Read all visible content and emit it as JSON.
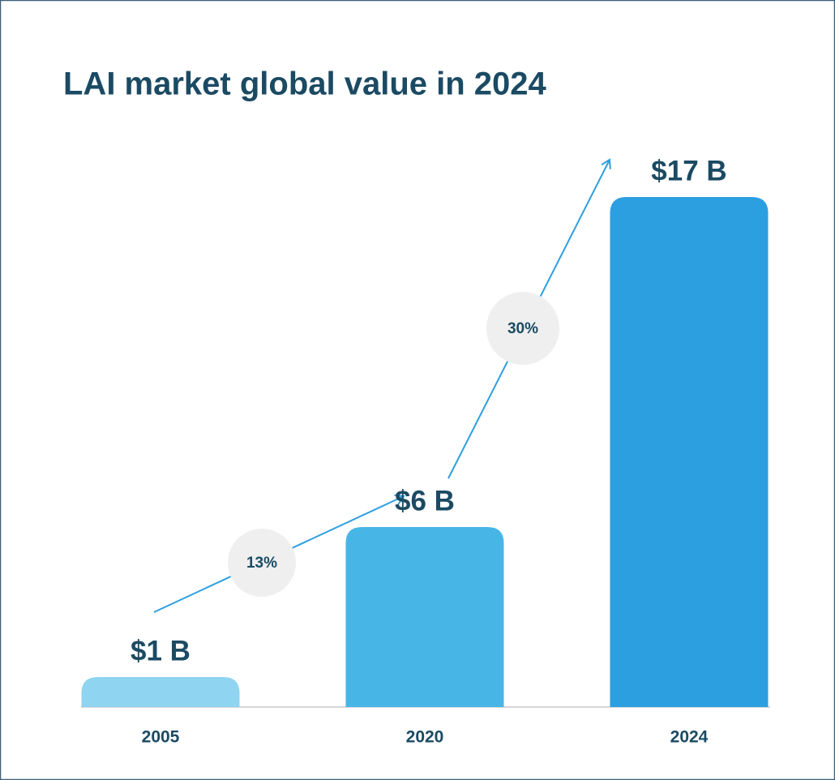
{
  "chart_data": {
    "type": "bar",
    "title": "LAI market global value in 2024",
    "categories": [
      "2005",
      "2020",
      "2024"
    ],
    "values": [
      1,
      6,
      17
    ],
    "value_labels": [
      "$1 B",
      "$6 B",
      "$17 B"
    ],
    "colors": [
      "#8fd4f1",
      "#47b6e7",
      "#2c9fe1"
    ],
    "annotations": [
      "13%",
      "30%"
    ]
  }
}
